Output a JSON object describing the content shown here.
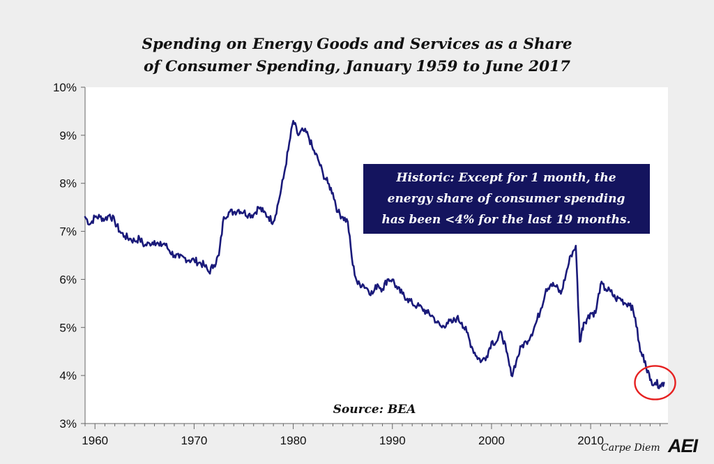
{
  "chart_data": {
    "type": "line",
    "title": "Spending on Energy Goods and Services as a Share of Consumer Spending, January 1959 to June 2017",
    "title_lines": [
      "Spending on Energy Goods and Services as a Share",
      "of Consumer Spending, January 1959 to June 2017"
    ],
    "xlabel": "",
    "ylabel": "",
    "xlim": [
      1959,
      2017.8
    ],
    "ylim": [
      3,
      10
    ],
    "x_ticks": [
      1960,
      1970,
      1980,
      1990,
      2000,
      2010
    ],
    "x_tick_labels": [
      "1960",
      "1970",
      "1980",
      "1990",
      "2000",
      "2010"
    ],
    "y_ticks": [
      3,
      4,
      5,
      6,
      7,
      8,
      9,
      10
    ],
    "y_tick_labels": [
      "3%",
      "4%",
      "5%",
      "6%",
      "7%",
      "8%",
      "9%",
      "10%"
    ],
    "grid": false,
    "line_color": "#1a1a7a",
    "x": [
      1959.0,
      1959.5,
      1960.0,
      1960.5,
      1961.0,
      1961.5,
      1962.0,
      1962.5,
      1963.0,
      1963.5,
      1964.0,
      1964.5,
      1965.0,
      1965.5,
      1966.0,
      1966.5,
      1967.0,
      1967.5,
      1968.0,
      1968.5,
      1969.0,
      1969.5,
      1970.0,
      1970.5,
      1971.0,
      1971.5,
      1972.0,
      1972.5,
      1973.0,
      1973.5,
      1974.0,
      1974.5,
      1975.0,
      1975.5,
      1976.0,
      1976.5,
      1977.0,
      1977.5,
      1978.0,
      1978.5,
      1979.0,
      1979.5,
      1980.0,
      1980.5,
      1981.0,
      1981.5,
      1982.0,
      1982.5,
      1983.0,
      1983.5,
      1984.0,
      1984.5,
      1985.0,
      1985.5,
      1986.0,
      1986.5,
      1987.0,
      1987.5,
      1988.0,
      1988.5,
      1989.0,
      1989.5,
      1990.0,
      1990.5,
      1991.0,
      1991.5,
      1992.0,
      1992.5,
      1993.0,
      1993.5,
      1994.0,
      1994.5,
      1995.0,
      1995.5,
      1996.0,
      1996.5,
      1997.0,
      1997.5,
      1998.0,
      1998.5,
      1999.0,
      1999.5,
      2000.0,
      2000.5,
      2001.0,
      2001.5,
      2002.0,
      2002.5,
      2003.0,
      2003.5,
      2004.0,
      2004.5,
      2005.0,
      2005.5,
      2006.0,
      2006.5,
      2007.0,
      2007.5,
      2008.0,
      2008.5,
      2008.9,
      2009.3,
      2009.7,
      2010.0,
      2010.5,
      2011.0,
      2011.5,
      2012.0,
      2012.5,
      2013.0,
      2013.5,
      2014.0,
      2014.5,
      2015.0,
      2015.5,
      2016.0,
      2016.5,
      2017.0,
      2017.4
    ],
    "series": [
      {
        "values": [
          7.3,
          7.15,
          7.3,
          7.3,
          7.25,
          7.35,
          7.2,
          7.0,
          6.9,
          6.85,
          6.8,
          6.85,
          6.7,
          6.75,
          6.8,
          6.7,
          6.75,
          6.6,
          6.5,
          6.45,
          6.45,
          6.4,
          6.4,
          6.35,
          6.3,
          6.15,
          6.3,
          6.5,
          7.3,
          7.4,
          7.4,
          7.45,
          7.4,
          7.35,
          7.35,
          7.5,
          7.4,
          7.3,
          7.2,
          7.6,
          8.1,
          8.7,
          9.3,
          9.0,
          9.1,
          9.0,
          8.7,
          8.5,
          8.2,
          8.0,
          7.8,
          7.4,
          7.3,
          7.2,
          6.3,
          5.9,
          5.9,
          5.8,
          5.7,
          5.9,
          5.8,
          6.0,
          6.0,
          5.8,
          5.7,
          5.6,
          5.5,
          5.45,
          5.4,
          5.3,
          5.25,
          5.1,
          5.0,
          5.1,
          5.1,
          5.2,
          5.1,
          4.9,
          4.6,
          4.4,
          4.3,
          4.4,
          4.7,
          4.7,
          4.9,
          4.5,
          4.0,
          4.3,
          4.6,
          4.7,
          4.85,
          5.1,
          5.4,
          5.8,
          5.9,
          5.85,
          5.7,
          6.1,
          6.5,
          6.7,
          4.7,
          5.1,
          5.2,
          5.3,
          5.3,
          5.9,
          5.8,
          5.75,
          5.6,
          5.6,
          5.5,
          5.5,
          5.2,
          4.5,
          4.3,
          3.9,
          3.85,
          3.8,
          3.85
        ]
      }
    ],
    "annotations": [
      "Historic: Except for 1 month, the",
      "energy share of consumer spending",
      "has been <4% for the last 19 months."
    ],
    "annotation_bg": "#14145e",
    "highlight": {
      "x": 2016.5,
      "y": 3.85,
      "color": "#e62020"
    },
    "source": "Source: BEA"
  },
  "branding": {
    "tagline": "Carpe Diem",
    "logo": "AEI"
  }
}
